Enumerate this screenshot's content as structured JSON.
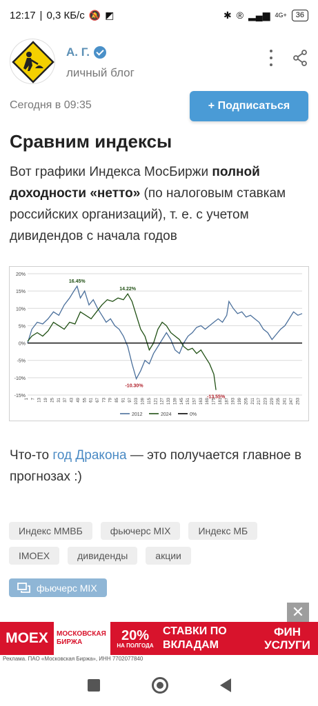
{
  "status_bar": {
    "time": "12:17",
    "speed": "0,3 КБ/с",
    "network": "4G+",
    "battery": "36"
  },
  "header": {
    "author_name": "А. Г.",
    "blog_type": "личный блог",
    "date": "Сегодня в 09:35",
    "subscribe_label": "+ Подписаться"
  },
  "article": {
    "title": "Сравним индексы",
    "intro_plain_1": "Вот графики Индекса МосБиржи ",
    "intro_bold_1": "полной доходности «нетто»",
    "intro_plain_2": " (по налоговым ставкам российских организаций), т. е. с учетом дивидендов с начала годов",
    "caption_plain_1": "Что-то ",
    "caption_link": "год Дракона",
    "caption_plain_2": "  — это получается главное в прогнозах :)"
  },
  "tags": [
    "Индекс ММВБ",
    "фьючерс MIX",
    "Индекс МБ",
    "IMOEX",
    "дивиденды",
    "акции"
  ],
  "active_tag": "фьючерс MIX",
  "ad": {
    "brand": "MOEX",
    "birzha": "МОСКОВСКАЯ БИРЖА",
    "rate": "20%",
    "rate_sub": "НА ПОЛГОДА",
    "stavki": "СТАВКИ ПО ВКЛАДАМ",
    "fin": "ФИН УСЛУГИ",
    "legal": "Реклама. ПАО «Московская Биржа», ИНН 7702077840",
    "close": "✕"
  },
  "colors": {
    "series_2012": "#4a6f9b",
    "series_2024": "#1f4f13",
    "series_0": "#000000",
    "link": "#4a8ac4",
    "subscribe": "#4a9bd6"
  },
  "chart_data": {
    "type": "line",
    "ylim": [
      -15,
      20
    ],
    "yticks": [
      "-15%",
      "-10%",
      "-5%",
      "0%",
      "5%",
      "10%",
      "15%",
      "20%"
    ],
    "ytick_values": [
      -15,
      -10,
      -5,
      0,
      5,
      10,
      15,
      20
    ],
    "xticks": [
      "1",
      "7",
      "13",
      "19",
      "25",
      "31",
      "37",
      "43",
      "49",
      "55",
      "61",
      "67",
      "73",
      "79",
      "85",
      "91",
      "97",
      "103",
      "109",
      "115",
      "121",
      "127",
      "133",
      "139",
      "145",
      "151",
      "157",
      "163",
      "169",
      "175",
      "181",
      "187",
      "193",
      "199",
      "205",
      "211",
      "217",
      "223",
      "229",
      "235",
      "241",
      "247",
      "253"
    ],
    "xlim": [
      1,
      256
    ],
    "legend": [
      "2012",
      "2024",
      "0%"
    ],
    "legend_position": "bottom",
    "grid": true,
    "annotations": [
      {
        "text": "16.45%",
        "x": 47,
        "y": 16.45,
        "color": "#1f4f13"
      },
      {
        "text": "14.22%",
        "x": 94,
        "y": 14.22,
        "color": "#1f4f13"
      },
      {
        "text": "-10.30%",
        "x": 100,
        "y": -10.3,
        "color": "#b0202a"
      },
      {
        "text": "-13.55%",
        "x": 176,
        "y": -13.55,
        "color": "#b0202a"
      }
    ],
    "series": [
      {
        "name": "2012",
        "points": [
          [
            1,
            0
          ],
          [
            5,
            4
          ],
          [
            10,
            6
          ],
          [
            15,
            5.5
          ],
          [
            20,
            7
          ],
          [
            25,
            9
          ],
          [
            30,
            8
          ],
          [
            35,
            11
          ],
          [
            40,
            13
          ],
          [
            44,
            15
          ],
          [
            47,
            16.4
          ],
          [
            50,
            13
          ],
          [
            54,
            15
          ],
          [
            58,
            11
          ],
          [
            62,
            12.5
          ],
          [
            66,
            10
          ],
          [
            70,
            8
          ],
          [
            74,
            6
          ],
          [
            78,
            7
          ],
          [
            82,
            5
          ],
          [
            86,
            4
          ],
          [
            90,
            2
          ],
          [
            94,
            -1
          ],
          [
            98,
            -6
          ],
          [
            102,
            -10.3
          ],
          [
            106,
            -8
          ],
          [
            110,
            -5
          ],
          [
            114,
            -6
          ],
          [
            118,
            -3
          ],
          [
            122,
            -1
          ],
          [
            126,
            1
          ],
          [
            130,
            3
          ],
          [
            134,
            1
          ],
          [
            138,
            -2
          ],
          [
            142,
            -3
          ],
          [
            146,
            0
          ],
          [
            150,
            2
          ],
          [
            154,
            3
          ],
          [
            158,
            4.5
          ],
          [
            162,
            5
          ],
          [
            166,
            4
          ],
          [
            170,
            5
          ],
          [
            174,
            6
          ],
          [
            178,
            7
          ],
          [
            182,
            6
          ],
          [
            186,
            8
          ],
          [
            188,
            12
          ],
          [
            192,
            10
          ],
          [
            196,
            8.5
          ],
          [
            200,
            9
          ],
          [
            204,
            7.5
          ],
          [
            208,
            8
          ],
          [
            212,
            7
          ],
          [
            216,
            6
          ],
          [
            220,
            4
          ],
          [
            224,
            3
          ],
          [
            228,
            1
          ],
          [
            232,
            2.5
          ],
          [
            236,
            4
          ],
          [
            240,
            5
          ],
          [
            244,
            7
          ],
          [
            248,
            9
          ],
          [
            252,
            8
          ],
          [
            256,
            8.5
          ]
        ]
      },
      {
        "name": "2024",
        "points": [
          [
            1,
            0.5
          ],
          [
            5,
            2
          ],
          [
            10,
            3
          ],
          [
            15,
            2
          ],
          [
            20,
            3.5
          ],
          [
            25,
            6
          ],
          [
            30,
            5
          ],
          [
            35,
            4
          ],
          [
            40,
            6
          ],
          [
            45,
            5.5
          ],
          [
            50,
            9
          ],
          [
            55,
            8
          ],
          [
            60,
            7
          ],
          [
            65,
            9
          ],
          [
            70,
            11
          ],
          [
            75,
            12.5
          ],
          [
            80,
            12
          ],
          [
            85,
            13
          ],
          [
            90,
            12.5
          ],
          [
            94,
            14.2
          ],
          [
            98,
            12
          ],
          [
            102,
            8
          ],
          [
            106,
            4
          ],
          [
            110,
            2
          ],
          [
            114,
            -2
          ],
          [
            118,
            0
          ],
          [
            122,
            4
          ],
          [
            126,
            6
          ],
          [
            130,
            5
          ],
          [
            134,
            3
          ],
          [
            138,
            2
          ],
          [
            142,
            1
          ],
          [
            146,
            -1
          ],
          [
            150,
            -2
          ],
          [
            154,
            -1.5
          ],
          [
            158,
            -3
          ],
          [
            162,
            -2
          ],
          [
            166,
            -4
          ],
          [
            170,
            -6
          ],
          [
            174,
            -9
          ],
          [
            176,
            -13.55
          ]
        ]
      },
      {
        "name": "0%",
        "points": [
          [
            1,
            0
          ],
          [
            256,
            0
          ]
        ]
      }
    ]
  }
}
